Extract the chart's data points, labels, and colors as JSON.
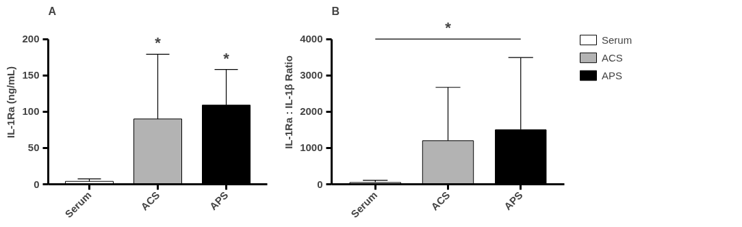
{
  "chart_data": [
    {
      "type": "bar",
      "title": "A",
      "ylabel": "IL-1Ra (ng/mL)",
      "categories": [
        "Serum",
        "ACS",
        "APS"
      ],
      "series": [
        {
          "color": "#ffffff",
          "values": [
            4,
            null,
            null
          ],
          "errors": [
            [
              4,
              7.5
            ],
            null,
            null
          ]
        },
        {
          "color": "#b3b3b3",
          "values": [
            null,
            90,
            null
          ],
          "errors": [
            null,
            [
              90,
              179
            ],
            null
          ]
        },
        {
          "color": "#000000",
          "values": [
            null,
            null,
            109
          ],
          "errors": [
            null,
            null,
            [
              109,
              158
            ]
          ]
        }
      ],
      "stacked": true,
      "ylim": [
        0,
        200
      ],
      "yticks": [
        0,
        50,
        100,
        150,
        200
      ],
      "grid": false,
      "legend": false,
      "annotations": [
        "*",
        "*"
      ]
    },
    {
      "type": "bar",
      "title": "B",
      "ylabel": "IL-1Ra : IL-1β Ratio",
      "categories": [
        "Serum",
        "ACS",
        "APS"
      ],
      "series": [
        {
          "name": "Serum",
          "color": "#ffffff",
          "values": [
            50,
            null,
            null
          ],
          "errors": [
            [
              50,
              110
            ],
            null,
            null
          ]
        },
        {
          "name": "ACS",
          "color": "#b3b3b3",
          "values": [
            null,
            1200,
            null
          ],
          "errors": [
            null,
            [
              1200,
              2670
            ],
            null
          ]
        },
        {
          "name": "APS",
          "color": "#000000",
          "values": [
            null,
            null,
            1500
          ],
          "errors": [
            null,
            null,
            [
              1500,
              3490
            ]
          ]
        }
      ],
      "stacked": true,
      "ylim": [
        0,
        4000
      ],
      "yticks": [
        0,
        1000,
        2000,
        3000,
        4000
      ],
      "grid": false,
      "legend": "right",
      "annotations": [
        "*"
      ]
    }
  ]
}
